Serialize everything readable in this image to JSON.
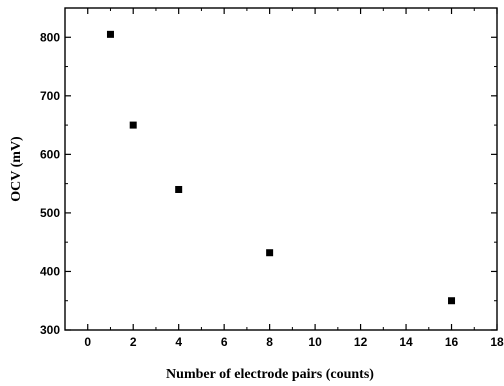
{
  "chart_data": {
    "type": "scatter",
    "title": "",
    "xlabel": "Number of electrode pairs (counts)",
    "ylabel": "OCV (mV)",
    "xlim": [
      -1,
      18
    ],
    "ylim": [
      300,
      850
    ],
    "x_ticks": [
      0,
      2,
      4,
      6,
      8,
      10,
      12,
      14,
      16,
      18
    ],
    "y_ticks": [
      300,
      400,
      500,
      600,
      700,
      800
    ],
    "grid": false,
    "legend": "none",
    "marker": "square",
    "marker_color": "#000000",
    "series": [
      {
        "x": [
          1,
          2,
          4,
          8,
          16
        ],
        "y": [
          805,
          650,
          540,
          432,
          350
        ]
      }
    ]
  }
}
